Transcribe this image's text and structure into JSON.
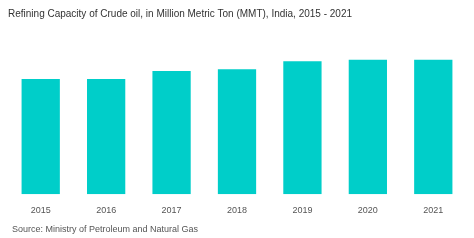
{
  "chart_data": {
    "type": "bar",
    "title": "Refining Capacity of Crude oil, in Million Metric Ton (MMT), India, 2015 - 2021",
    "categories": [
      "2015",
      "2016",
      "2017",
      "2018",
      "2019",
      "2020",
      "2021"
    ],
    "values": [
      215,
      215,
      230,
      233,
      248,
      251,
      251
    ],
    "color": "#00CEC9",
    "ylim": [
      0,
      310
    ],
    "grid": false,
    "tick_labels": "x",
    "annotations": [
      "Source: Ministry of Petroleum and Natural Gas"
    ]
  }
}
